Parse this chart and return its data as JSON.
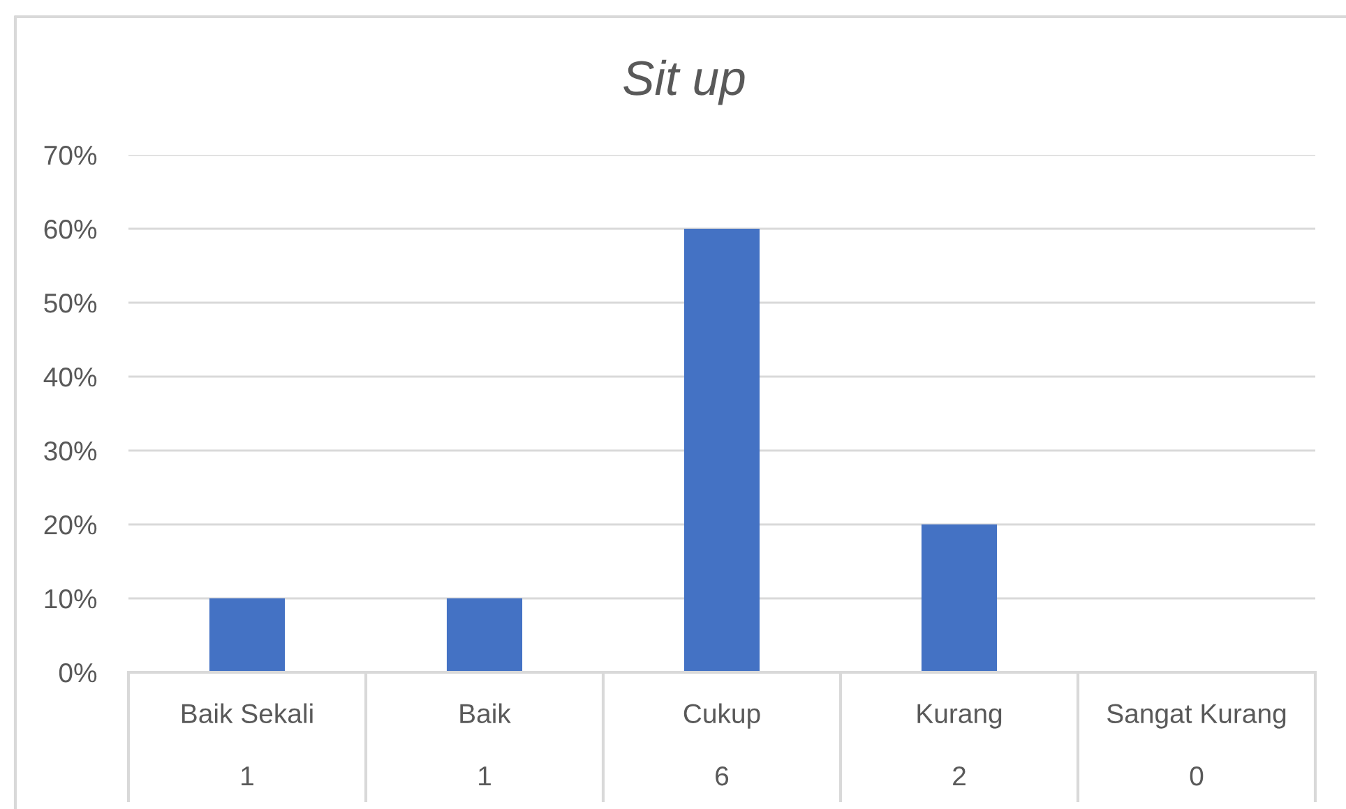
{
  "chart_data": {
    "type": "bar",
    "title": "Sit up",
    "categories": [
      "Baik Sekali",
      "Baik",
      "Cukup",
      "Kurang",
      "Sangat Kurang"
    ],
    "values": [
      10,
      10,
      60,
      20,
      0
    ],
    "color": "#4472c4",
    "ylim": [
      0,
      70
    ],
    "yticks": [
      {
        "value": 0,
        "label": "0%"
      },
      {
        "value": 10,
        "label": "10%"
      },
      {
        "value": 20,
        "label": "20%"
      },
      {
        "value": 30,
        "label": "30%"
      },
      {
        "value": 40,
        "label": "40%"
      },
      {
        "value": 50,
        "label": "50%"
      },
      {
        "value": 60,
        "label": "60%"
      },
      {
        "value": 70,
        "label": "70%"
      }
    ],
    "grid": "y",
    "annotations": [
      "1",
      "1",
      "6",
      "2",
      "0"
    ]
  }
}
